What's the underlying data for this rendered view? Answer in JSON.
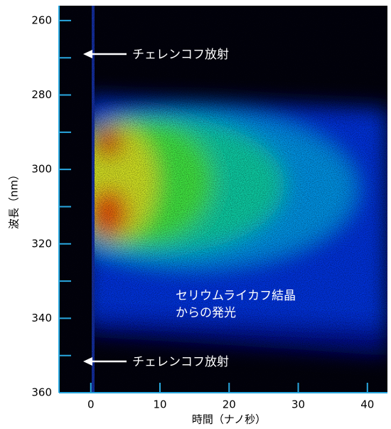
{
  "chart_data": {
    "type": "image",
    "xlabel": "時間（ナノ秒）",
    "ylabel": "波長（nm）",
    "xlim": [
      -4.6,
      42.9
    ],
    "ylim": [
      256,
      360
    ],
    "y_inverted": true,
    "xticks": [
      0,
      10,
      20,
      30,
      40
    ],
    "yticks": [
      260,
      280,
      300,
      320,
      340,
      360
    ],
    "yminor_ticks": [
      270,
      290,
      310,
      330,
      350
    ],
    "axis_color": "#29a8e0",
    "annotations": [
      {
        "text": "チェレンコフ放射"
      },
      {
        "text": "チェレンコフ放射"
      },
      {
        "lines": [
          "セリウムライカフ結晶",
          "からの発光"
        ]
      }
    ]
  }
}
